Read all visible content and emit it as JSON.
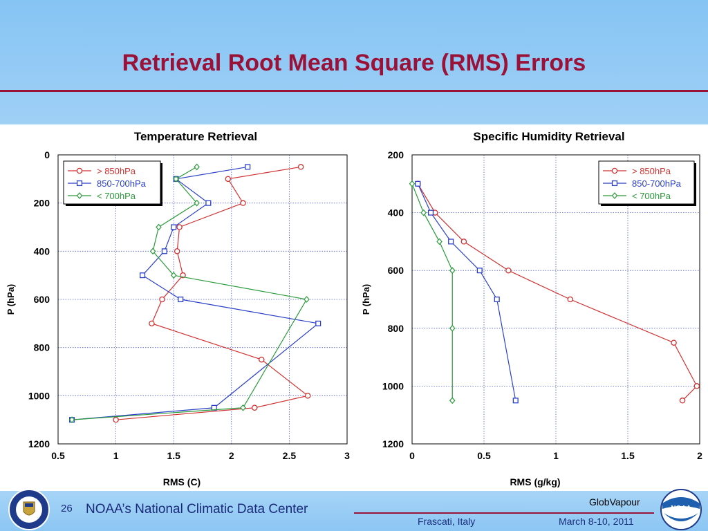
{
  "slide": {
    "title": "Retrieval Root Mean Square (RMS) Errors",
    "page_number": "26",
    "footer_center": "NOAA’s National Climatic Data Center",
    "footer_brand": "GlobVapour",
    "footer_place": "Frascati, Italy",
    "footer_date": "March 8-10, 2011",
    "logo_right_text": "NOAA",
    "colors": {
      "title": "#9b1238",
      "band": "#94caf5",
      "footer_text": "#1a2a7a"
    }
  },
  "chart_data": [
    {
      "type": "line",
      "title": "Temperature Retrieval",
      "xlabel": "RMS (C)",
      "ylabel": "P (hPa)",
      "xlim": [
        0.5,
        3
      ],
      "ylim": [
        0,
        1200
      ],
      "y_inverted": true,
      "xticks": [
        "0.5",
        "1",
        "1.5",
        "2",
        "2.5",
        "3"
      ],
      "yticks": [
        "0",
        "200",
        "400",
        "600",
        "800",
        "1000",
        "1200"
      ],
      "grid": true,
      "legend_position": "top-left",
      "series": [
        {
          "name": "> 850hPa",
          "color": "#d03030",
          "marker": "circle",
          "x": [
            2.6,
            1.97,
            2.1,
            1.55,
            1.53,
            1.58,
            1.4,
            1.31,
            2.26,
            2.66,
            2.2,
            1.0
          ],
          "y": [
            50,
            100,
            200,
            300,
            400,
            500,
            600,
            700,
            850,
            1000,
            1050,
            1100
          ]
        },
        {
          "name": "850-700hPa",
          "color": "#2a3fc8",
          "marker": "square",
          "x": [
            2.14,
            1.52,
            1.8,
            1.5,
            1.42,
            1.23,
            1.56,
            2.75,
            1.85,
            0.62
          ],
          "y": [
            50,
            100,
            200,
            300,
            400,
            500,
            600,
            700,
            1050,
            1100
          ]
        },
        {
          "name": "< 700hPa",
          "color": "#2a9a3a",
          "marker": "diamond",
          "x": [
            1.7,
            1.52,
            1.7,
            1.37,
            1.32,
            1.5,
            2.65,
            2.1,
            0.62
          ],
          "y": [
            50,
            100,
            200,
            300,
            400,
            500,
            600,
            1050,
            1100
          ]
        }
      ]
    },
    {
      "type": "line",
      "title": "Specific Humidity Retrieval",
      "xlabel": "RMS (g/kg)",
      "ylabel": "P (hPa)",
      "xlim": [
        0,
        2
      ],
      "ylim": [
        200,
        1200
      ],
      "y_inverted": true,
      "xticks": [
        "0",
        "0.5",
        "1",
        "1.5",
        "2"
      ],
      "yticks": [
        "200",
        "400",
        "600",
        "800",
        "1000",
        "1200"
      ],
      "grid": true,
      "legend_position": "top-right",
      "series": [
        {
          "name": "> 850hPa",
          "color": "#d03030",
          "marker": "circle",
          "x": [
            0.04,
            0.16,
            0.36,
            0.67,
            1.1,
            1.82,
            1.98,
            1.88
          ],
          "y": [
            300,
            400,
            500,
            600,
            700,
            850,
            1000,
            1050
          ]
        },
        {
          "name": "850-700hPa",
          "color": "#2a3fc8",
          "marker": "square",
          "x": [
            0.04,
            0.13,
            0.27,
            0.47,
            0.59,
            0.72
          ],
          "y": [
            300,
            400,
            500,
            600,
            700,
            1050
          ]
        },
        {
          "name": "< 700hPa",
          "color": "#2a9a3a",
          "marker": "diamond",
          "x": [
            0.0,
            0.08,
            0.19,
            0.28,
            0.28,
            0.28
          ],
          "y": [
            300,
            400,
            500,
            600,
            800,
            1050
          ]
        }
      ]
    }
  ]
}
